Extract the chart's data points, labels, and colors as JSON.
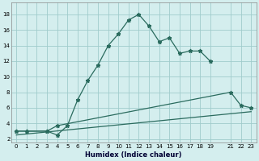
{
  "xlabel": "Humidex (Indice chaleur)",
  "bg_color": "#d4eeee",
  "grid_color": "#a0cccc",
  "line_color": "#2a6b5e",
  "xlim": [
    -0.5,
    23.5
  ],
  "ylim": [
    1.5,
    19.5
  ],
  "xticks": [
    0,
    1,
    2,
    3,
    4,
    5,
    6,
    7,
    8,
    9,
    10,
    11,
    12,
    13,
    14,
    15,
    16,
    17,
    18,
    19,
    21,
    22,
    23
  ],
  "yticks": [
    2,
    4,
    6,
    8,
    10,
    12,
    14,
    16,
    18
  ],
  "line1_x": [
    0,
    1,
    3,
    4,
    5,
    6,
    7,
    8,
    9,
    10,
    11,
    12,
    13,
    14,
    15,
    16,
    17,
    18,
    19
  ],
  "line1_y": [
    3,
    3,
    3,
    2.5,
    3.7,
    7.0,
    9.5,
    11.5,
    14.0,
    15.5,
    17.3,
    18.0,
    16.5,
    14.5,
    15.0,
    13.0,
    13.3,
    13.3,
    12.0
  ],
  "line2_x": [
    0,
    1,
    3,
    4,
    21,
    22,
    23
  ],
  "line2_y": [
    3,
    3,
    3,
    3.7,
    8.0,
    6.3,
    6.0
  ],
  "line3_x": [
    0,
    23
  ],
  "line3_y": [
    2.5,
    5.5
  ]
}
